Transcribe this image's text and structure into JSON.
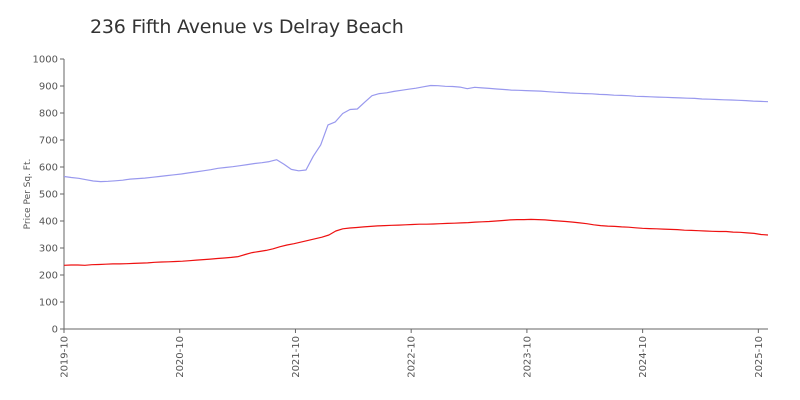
{
  "chart_data": {
    "type": "line",
    "title": "236 Fifth Avenue vs Delray Beach",
    "xlabel": "",
    "ylabel": "Price Per Sq. Ft.",
    "ylim": [
      0,
      1000
    ],
    "yticks": [
      0,
      100,
      200,
      300,
      400,
      500,
      600,
      700,
      800,
      900,
      1000
    ],
    "xticks": [
      "2019-10",
      "2020-10",
      "2021-10",
      "2022-10",
      "2023-10",
      "2024-10",
      "2025-10"
    ],
    "grid": false,
    "legend": "none",
    "x_start": "2019-10",
    "x_end": "2025-11",
    "series": [
      {
        "color": "#9999ee",
        "values": [
          565,
          561,
          558,
          553,
          548,
          546,
          547,
          549,
          551,
          555,
          557,
          559,
          562,
          565,
          568,
          571,
          574,
          578,
          582,
          586,
          590,
          595,
          598,
          601,
          605,
          609,
          613,
          616,
          620,
          627,
          610,
          591,
          586,
          589,
          640,
          682,
          756,
          767,
          798,
          813,
          815,
          840,
          864,
          872,
          875,
          880,
          884,
          888,
          892,
          897,
          902,
          901,
          899,
          898,
          896,
          890,
          895,
          893,
          891,
          889,
          887,
          885,
          884,
          883,
          882,
          881,
          879,
          877,
          876,
          874,
          873,
          872,
          871,
          869,
          868,
          866,
          865,
          864,
          862,
          861,
          860,
          859,
          858,
          857,
          856,
          855,
          854,
          852,
          851,
          850,
          849,
          848,
          847,
          846,
          844,
          843,
          842
        ]
      },
      {
        "color": "#ee1111",
        "values": [
          236,
          237,
          237,
          236,
          238,
          239,
          240,
          241,
          241,
          242,
          243,
          244,
          245,
          247,
          248,
          249,
          250,
          251,
          253,
          255,
          257,
          259,
          261,
          263,
          265,
          268,
          276,
          283,
          287,
          291,
          297,
          305,
          311,
          316,
          322,
          328,
          334,
          340,
          348,
          363,
          371,
          374,
          376,
          378,
          380,
          382,
          383,
          384,
          385,
          386,
          387,
          388,
          388,
          389,
          390,
          391,
          392,
          393,
          394,
          396,
          397,
          398,
          400,
          402,
          404,
          405,
          405,
          406,
          405,
          404,
          402,
          400,
          398,
          396,
          393,
          390,
          386,
          383,
          381,
          380,
          378,
          377,
          375,
          373,
          372,
          371,
          370,
          369,
          368,
          366,
          365,
          364,
          363,
          362,
          361,
          361,
          359,
          358,
          356,
          354,
          350,
          348
        ]
      }
    ]
  }
}
